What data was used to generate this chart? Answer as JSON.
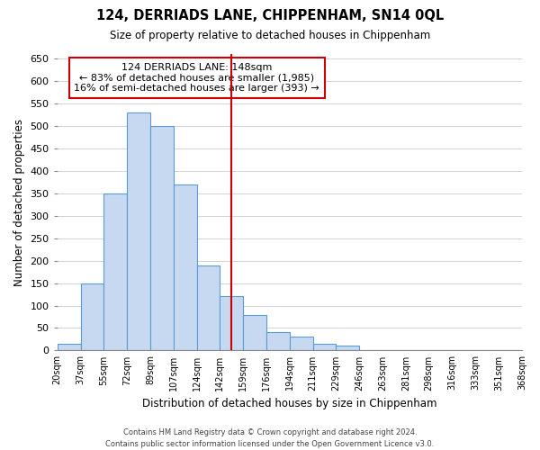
{
  "title": "124, DERRIADS LANE, CHIPPENHAM, SN14 0QL",
  "subtitle": "Size of property relative to detached houses in Chippenham",
  "xlabel": "Distribution of detached houses by size in Chippenham",
  "ylabel": "Number of detached properties",
  "bin_labels": [
    "20sqm",
    "37sqm",
    "55sqm",
    "72sqm",
    "89sqm",
    "107sqm",
    "124sqm",
    "142sqm",
    "159sqm",
    "176sqm",
    "194sqm",
    "211sqm",
    "229sqm",
    "246sqm",
    "263sqm",
    "281sqm",
    "298sqm",
    "316sqm",
    "333sqm",
    "351sqm",
    "368sqm"
  ],
  "bar_values": [
    15,
    150,
    350,
    530,
    500,
    370,
    190,
    122,
    78,
    40,
    30,
    15,
    10,
    0,
    0,
    0,
    0,
    0,
    0,
    0
  ],
  "bar_color": "#c6d9f0",
  "bar_edge_color": "#5b9bd5",
  "vline_x": 7.5,
  "vline_color": "#cc0000",
  "annotation_text": "124 DERRIADS LANE: 148sqm\n← 83% of detached houses are smaller (1,985)\n16% of semi-detached houses are larger (393) →",
  "annotation_box_color": "#ffffff",
  "annotation_box_edge": "#cc0000",
  "ylim": [
    0,
    660
  ],
  "yticks": [
    0,
    50,
    100,
    150,
    200,
    250,
    300,
    350,
    400,
    450,
    500,
    550,
    600,
    650
  ],
  "footer_line1": "Contains HM Land Registry data © Crown copyright and database right 2024.",
  "footer_line2": "Contains public sector information licensed under the Open Government Licence v3.0.",
  "background_color": "#ffffff",
  "grid_color": "#cccccc"
}
